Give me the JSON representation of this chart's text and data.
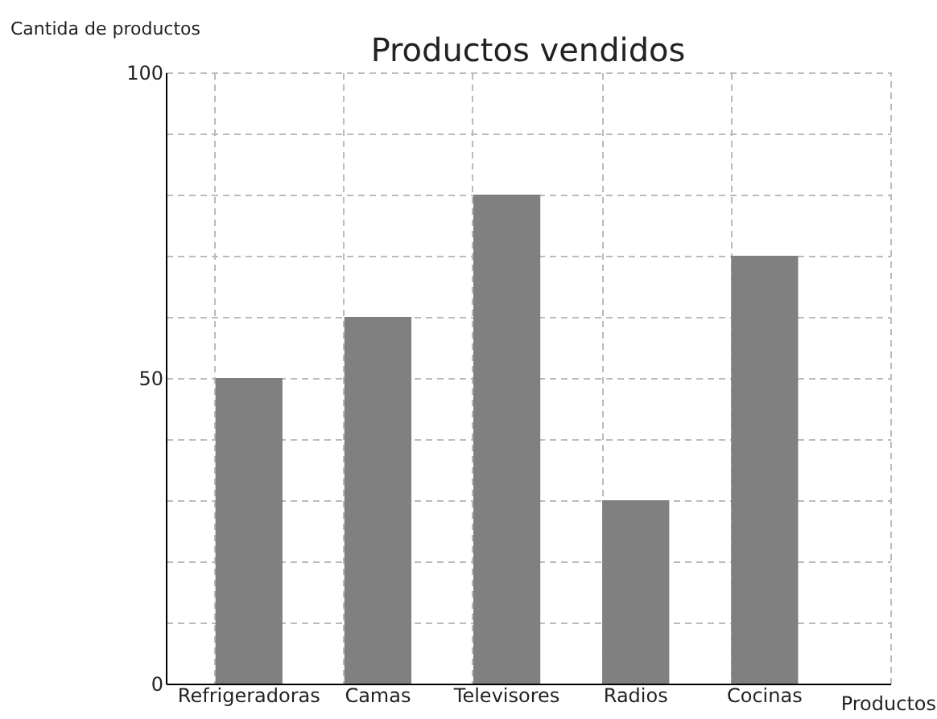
{
  "chart_data": {
    "type": "bar",
    "title": "Productos vendidos",
    "xlabel": "Productos",
    "ylabel": "Cantida de productos",
    "categories": [
      "Refrigeradoras",
      "Camas",
      "Televisores",
      "Radios",
      "Cocinas"
    ],
    "values": [
      50,
      60,
      80,
      30,
      70
    ],
    "color": "#808080",
    "ylim": [
      0,
      100
    ],
    "yticks": [
      0,
      {
        "value": 10,
        "label": null
      },
      {
        "value": 20,
        "label": null
      },
      {
        "value": 30,
        "label": null
      },
      {
        "value": 40,
        "label": null
      },
      50,
      {
        "value": 60,
        "label": null
      },
      {
        "value": 70,
        "label": null
      },
      {
        "value": 80,
        "label": null
      },
      {
        "value": 90,
        "label": null
      },
      100
    ],
    "grid": true
  }
}
